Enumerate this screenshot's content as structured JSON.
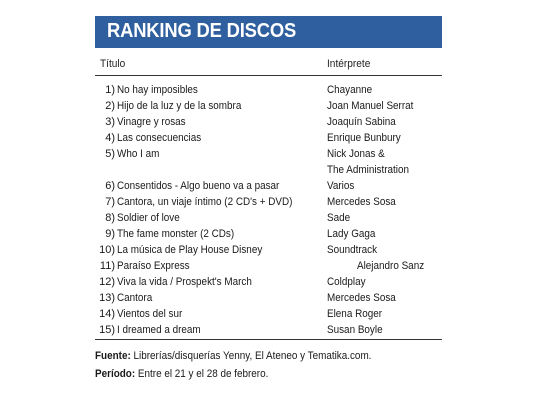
{
  "header": {
    "title": "RANKING DE DISCOS",
    "bg_color": "#2f5f9e"
  },
  "columns": {
    "title": "Título",
    "artist": "Intérprete"
  },
  "rows": [
    {
      "num": "1)",
      "title": "No hay imposibles",
      "artist": "Chayanne"
    },
    {
      "num": "2)",
      "title": "Hijo de la luz y de la sombra",
      "artist": "Joan Manuel Serrat"
    },
    {
      "num": "3)",
      "title": "Vinagre y rosas",
      "artist": "Joaquín Sabina"
    },
    {
      "num": "4)",
      "title": "Las consecuencias",
      "artist": "Enrique Bunbury"
    },
    {
      "num": "5)",
      "title": "Who I am",
      "artist": "Nick Jonas &",
      "artist2": "The Administration"
    },
    {
      "num": "6)",
      "title": "Consentidos - Algo bueno va a pasar",
      "artist": "Varios"
    },
    {
      "num": "7)",
      "title": "Cantora, un viaje íntimo (2 CD's + DVD)",
      "artist": "Mercedes Sosa"
    },
    {
      "num": "8)",
      "title": "Soldier of love",
      "artist": "Sade"
    },
    {
      "num": "9)",
      "title": "The fame monster (2 CDs)",
      "artist": "Lady Gaga"
    },
    {
      "num": "10)",
      "title": "La música de Play House Disney",
      "artist": "Soundtrack"
    },
    {
      "num": "11)",
      "title": "Paraíso Express",
      "artist": "Alejandro Sanz"
    },
    {
      "num": "12)",
      "title": "Viva la vida / Prospekt's March",
      "artist": "Coldplay"
    },
    {
      "num": "13)",
      "title": "Cantora",
      "artist": "Mercedes Sosa"
    },
    {
      "num": "14)",
      "title": "Vientos del sur",
      "artist": "Elena Roger"
    },
    {
      "num": "15)",
      "title": "I dreamed a dream",
      "artist": "Susan Boyle"
    }
  ],
  "footer": {
    "source_label": "Fuente:",
    "source_text": "Librerías/disquerías Yenny, El Ateneo y Tematika.com.",
    "period_label": "Período:",
    "period_text": "Entre el 21 y el 28 de febrero."
  }
}
